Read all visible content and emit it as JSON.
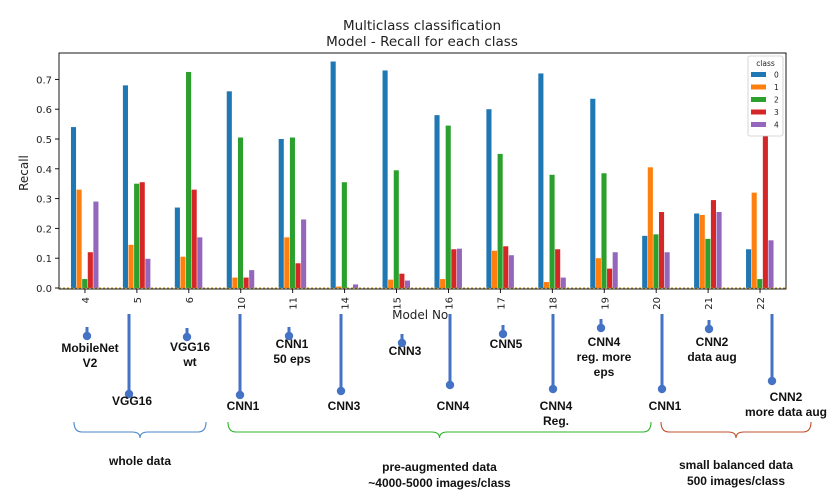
{
  "chart_data": {
    "type": "bar",
    "title": [
      "Multiclass classification",
      "Model - Recall for each class"
    ],
    "xlabel": "Model No.",
    "ylabel": "Recall",
    "ylim": [
      0,
      0.77
    ],
    "yticks": [
      "0.0",
      "0.1",
      "0.2",
      "0.3",
      "0.4",
      "0.5",
      "0.6",
      "0.7"
    ],
    "categories": [
      "4",
      "5",
      "6",
      "10",
      "11",
      "14",
      "15",
      "16",
      "17",
      "18",
      "19",
      "20",
      "21",
      "22"
    ],
    "legend": {
      "title": "class",
      "placement": "top-right"
    },
    "series": [
      {
        "name": "0",
        "color": "#1f77b4",
        "values": [
          0.54,
          0.68,
          0.27,
          0.66,
          0.5,
          0.76,
          0.73,
          0.58,
          0.6,
          0.72,
          0.635,
          0.175,
          0.25,
          0.13
        ]
      },
      {
        "name": "1",
        "color": "#ff7f0e",
        "values": [
          0.33,
          0.145,
          0.105,
          0.035,
          0.17,
          0.005,
          0.028,
          0.03,
          0.125,
          0.02,
          0.1,
          0.405,
          0.245,
          0.32
        ]
      },
      {
        "name": "2",
        "color": "#2ca02c",
        "values": [
          0.03,
          0.35,
          0.725,
          0.505,
          0.505,
          0.355,
          0.395,
          0.545,
          0.45,
          0.38,
          0.385,
          0.18,
          0.165,
          0.03
        ]
      },
      {
        "name": "3",
        "color": "#d62728",
        "values": [
          0.12,
          0.355,
          0.33,
          0.035,
          0.083,
          0.0,
          0.048,
          0.13,
          0.14,
          0.13,
          0.065,
          0.255,
          0.295,
          0.55
        ]
      },
      {
        "name": "4",
        "color": "#9467bd",
        "values": [
          0.29,
          0.098,
          0.17,
          0.06,
          0.23,
          0.012,
          0.025,
          0.132,
          0.11,
          0.035,
          0.12,
          0.12,
          0.255,
          0.16
        ]
      }
    ]
  },
  "annotations": {
    "model_labels": [
      [
        "MobileNet",
        "V2"
      ],
      [
        "VGG16"
      ],
      [
        "VGG16",
        "wt"
      ],
      [
        "CNN1"
      ],
      [
        "CNN1",
        "50 eps"
      ],
      [
        "CNN3"
      ],
      [
        "CNN3"
      ],
      [
        "CNN4"
      ],
      [
        "CNN5"
      ],
      [
        "CNN4",
        "Reg."
      ],
      [
        "CNN4",
        "reg. more",
        "eps"
      ],
      [
        "CNN1"
      ],
      [
        "CNN2",
        "data aug"
      ],
      [
        "CNN2",
        "more data aug"
      ]
    ],
    "groups": [
      {
        "lines": [
          "whole data"
        ],
        "color": "#4a86c8"
      },
      {
        "lines": [
          "pre-augmented data",
          "~4000-5000 images/class"
        ],
        "color": "#2db52d"
      },
      {
        "lines": [
          "small balanced data",
          "500 images/class"
        ],
        "color": "#c0502a"
      }
    ],
    "marker_color": "#4472c4"
  }
}
